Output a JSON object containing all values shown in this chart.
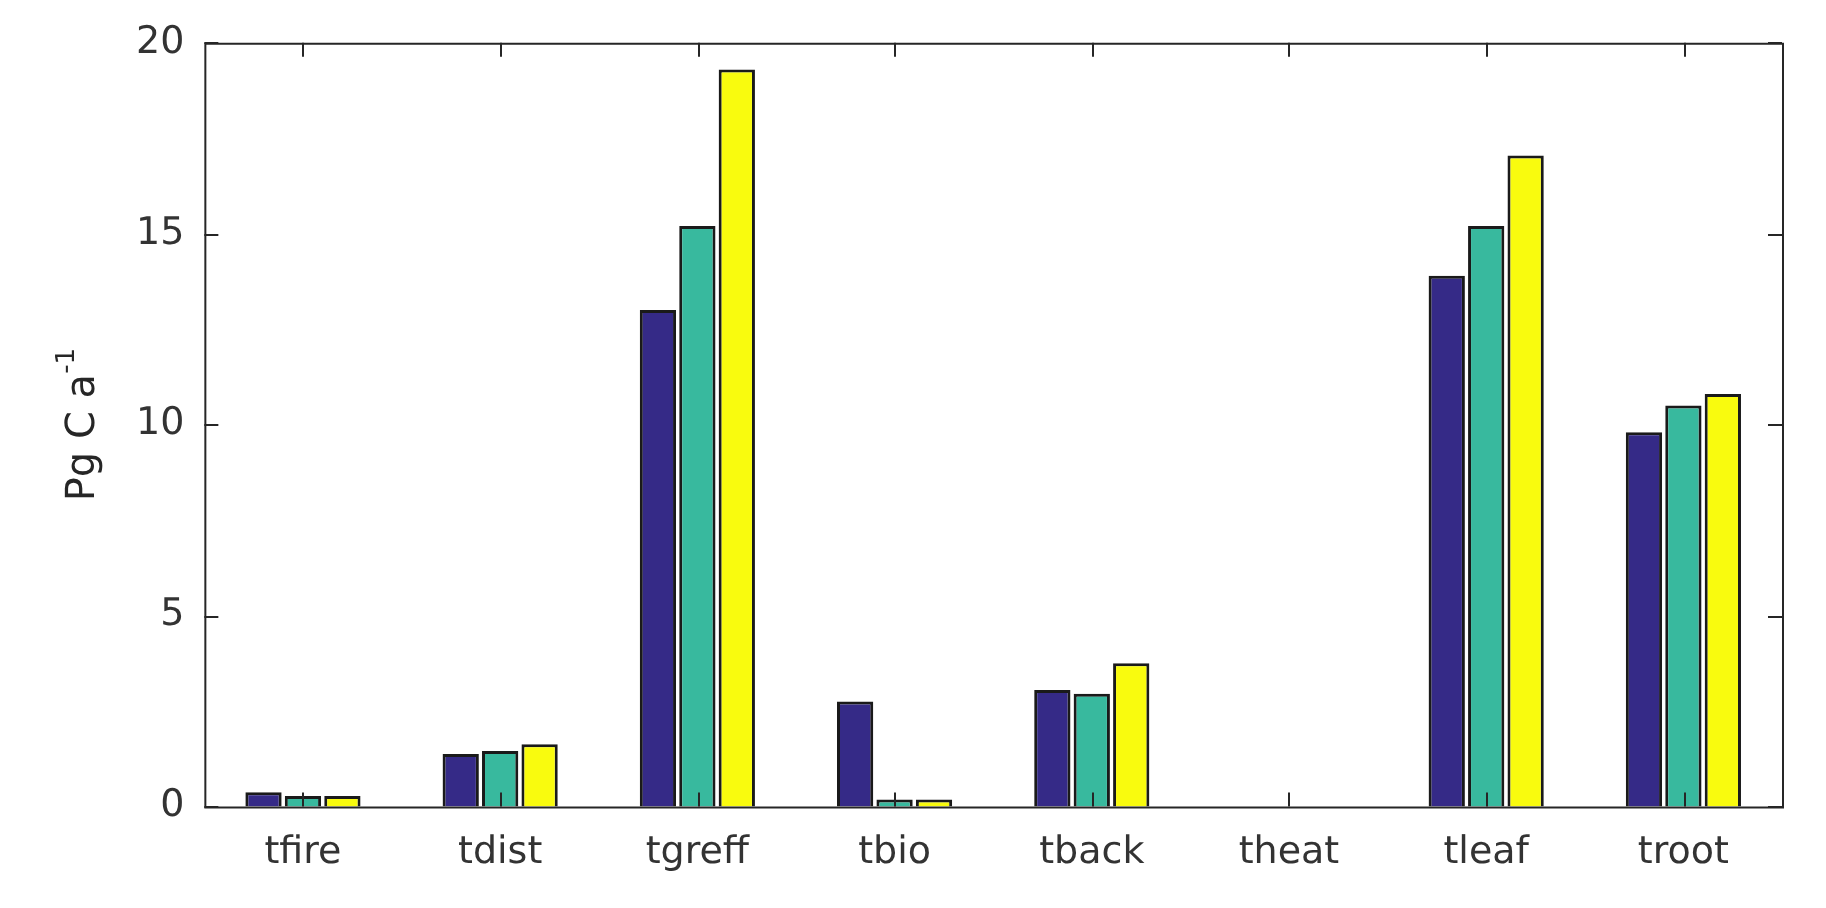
{
  "chart_data": {
    "type": "bar",
    "ylabel": "Pg C a$^{-1}$",
    "categories": [
      "tfire",
      "tdist",
      "tgreff",
      "tbio",
      "tback",
      "theat",
      "tleaf",
      "troot"
    ],
    "series": [
      {
        "color": "#352a87",
        "values": [
          0.37,
          1.37,
          13.0,
          2.75,
          3.05,
          0,
          13.9,
          9.8
        ]
      },
      {
        "color": "#38b99e",
        "values": [
          0.27,
          1.45,
          15.2,
          0.18,
          2.95,
          0,
          15.2,
          10.5
        ]
      },
      {
        "color": "#f9fb0e",
        "values": [
          0.27,
          1.63,
          19.3,
          0.18,
          3.75,
          0,
          17.05,
          10.8
        ]
      }
    ],
    "ylim": [
      0,
      20
    ],
    "yticks": [
      0,
      5,
      10,
      15,
      20
    ]
  }
}
